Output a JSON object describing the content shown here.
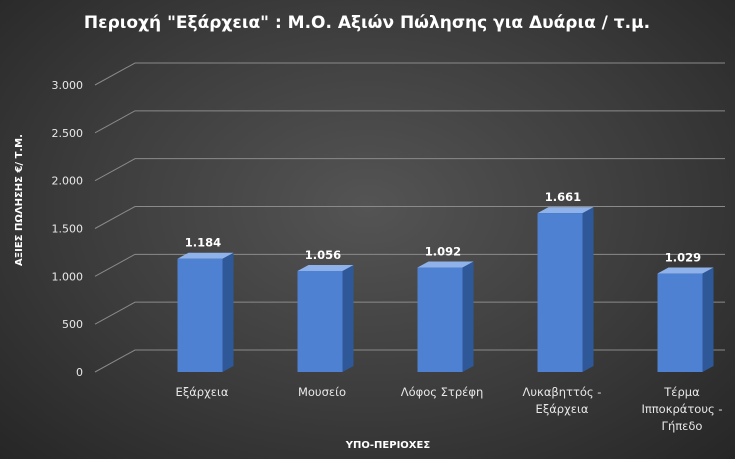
{
  "chart_data": {
    "type": "bar",
    "title": "Περιοχή \"Εξάρχεια\" : Μ.Ο. Αξιών Πώλησης για Δυάρια / τ.μ.",
    "xlabel": "ΥΠΟ-ΠΕΡΙΟΧΕΣ",
    "ylabel": "ΑΞΙΕΣ ΠΩΛΗΣΗΣ €/ Τ.Μ.",
    "ylim": [
      0,
      3000
    ],
    "yticks": [
      0,
      500,
      1000,
      1500,
      2000,
      2500,
      3000
    ],
    "ytick_labels": [
      "0",
      "500",
      "1.000",
      "1.500",
      "2.000",
      "2.500",
      "3.000"
    ],
    "categories": [
      [
        "Εξάρχεια"
      ],
      [
        "Μουσείο"
      ],
      [
        "Λόφος Στρέφη"
      ],
      [
        "Λυκαβηττός -",
        "Εξάρχεια"
      ],
      [
        "Τέρμα",
        "Ιπποκράτους -",
        "Γήπεδο"
      ]
    ],
    "values": [
      1184,
      1056,
      1092,
      1661,
      1029
    ],
    "data_labels": [
      "1.184",
      "1.056",
      "1.092",
      "1.661",
      "1.029"
    ],
    "grid": true,
    "legend": "none",
    "colors": {
      "bar_front": "#4f81d3",
      "bar_side": "#2f5899",
      "bar_top": "#8fb2ea"
    }
  }
}
